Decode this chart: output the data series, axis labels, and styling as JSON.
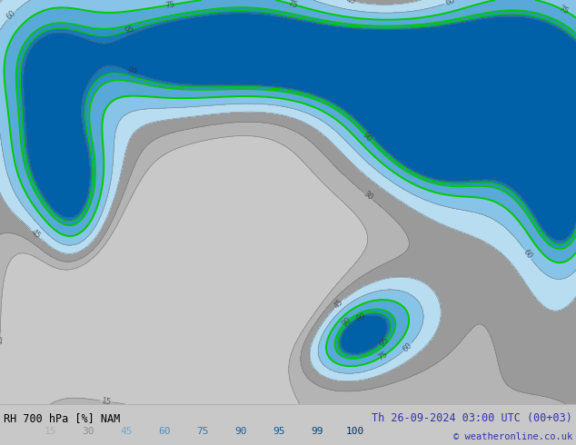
{
  "title_left": "RH 700 hPa [%] NAM",
  "title_right": "Th 26-09-2024 03:00 UTC (00+03)",
  "copyright": "© weatheronline.co.uk",
  "colorbar_levels": [
    15,
    30,
    45,
    60,
    75,
    90,
    95,
    99,
    100
  ],
  "legend_label_colors": [
    "#b0b0b0",
    "#909090",
    "#70aad0",
    "#5090c0",
    "#3878b0",
    "#2060a0",
    "#105890",
    "#084878",
    "#003060"
  ],
  "background_color": "#c8c8c8",
  "bottom_bar_color": "#ffffff",
  "label_color_left": "#000000",
  "label_color_right": "#3333aa",
  "copyright_color": "#3333aa",
  "fig_width": 6.34,
  "fig_height": 4.9,
  "dpi": 100,
  "map_colors": {
    "below15": "#c8c8c8",
    "15_30": "#b4b4b4",
    "30_45": "#9a9a9a",
    "45_60": "#b8ddf0",
    "60_75": "#88c4e8",
    "75_90": "#58a8d8",
    "90_95": "#3090c8",
    "95_99": "#1878b8",
    "99_100": "#0060a8"
  },
  "green_line_color": "#00cc00",
  "gray_line_color": "#707070",
  "number_color": "#333333",
  "white_area_color": "#f0f0f0"
}
